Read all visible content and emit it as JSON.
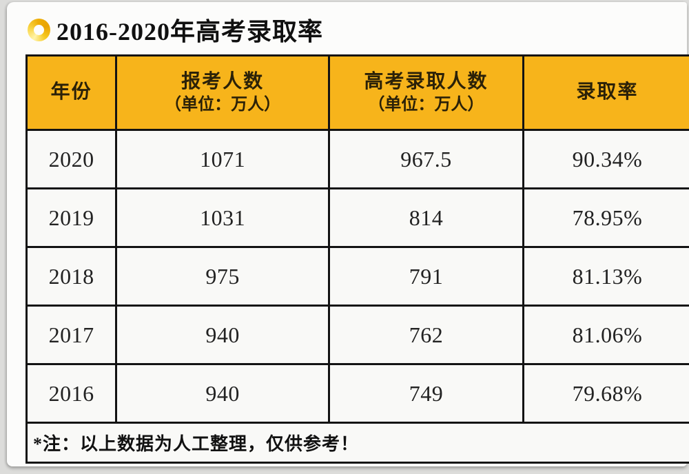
{
  "page": {
    "title": "2016-2020年高考录取率"
  },
  "table": {
    "columns": [
      {
        "label": "年份",
        "sublabel": ""
      },
      {
        "label": "报考人数",
        "sublabel": "（单位：万人）"
      },
      {
        "label": "高考录取人数",
        "sublabel": "（单位：万人）"
      },
      {
        "label": "录取率",
        "sublabel": ""
      }
    ],
    "rows": [
      {
        "year": "2020",
        "applicants": "1071",
        "admitted": "967.5",
        "rate": "90.34%"
      },
      {
        "year": "2019",
        "applicants": "1031",
        "admitted": "814",
        "rate": "78.95%"
      },
      {
        "year": "2018",
        "applicants": "975",
        "admitted": "791",
        "rate": "81.13%"
      },
      {
        "year": "2017",
        "applicants": "940",
        "admitted": "762",
        "rate": "81.06%"
      },
      {
        "year": "2016",
        "applicants": "940",
        "admitted": "749",
        "rate": "79.68%"
      }
    ],
    "footnote": "*注：以上数据为人工整理，仅供参考！"
  },
  "colors": {
    "header_bg": "#f7b41b",
    "border": "#131313",
    "card_bg": "#fcfcfb",
    "page_bg": "#dcdcda",
    "icon_gold": "#eeae06"
  },
  "chart_data": {
    "type": "table",
    "title": "2016-2020年高考录取率",
    "columns": [
      "年份",
      "报考人数（单位：万人）",
      "高考录取人数（单位：万人）",
      "录取率"
    ],
    "rows": [
      [
        "2020",
        1071,
        967.5,
        "90.34%"
      ],
      [
        "2019",
        1031,
        814,
        "78.95%"
      ],
      [
        "2018",
        975,
        791,
        "81.13%"
      ],
      [
        "2017",
        940,
        762,
        "81.06%"
      ],
      [
        "2016",
        940,
        749,
        "79.68%"
      ]
    ],
    "footnote": "*注：以上数据为人工整理，仅供参考！"
  }
}
